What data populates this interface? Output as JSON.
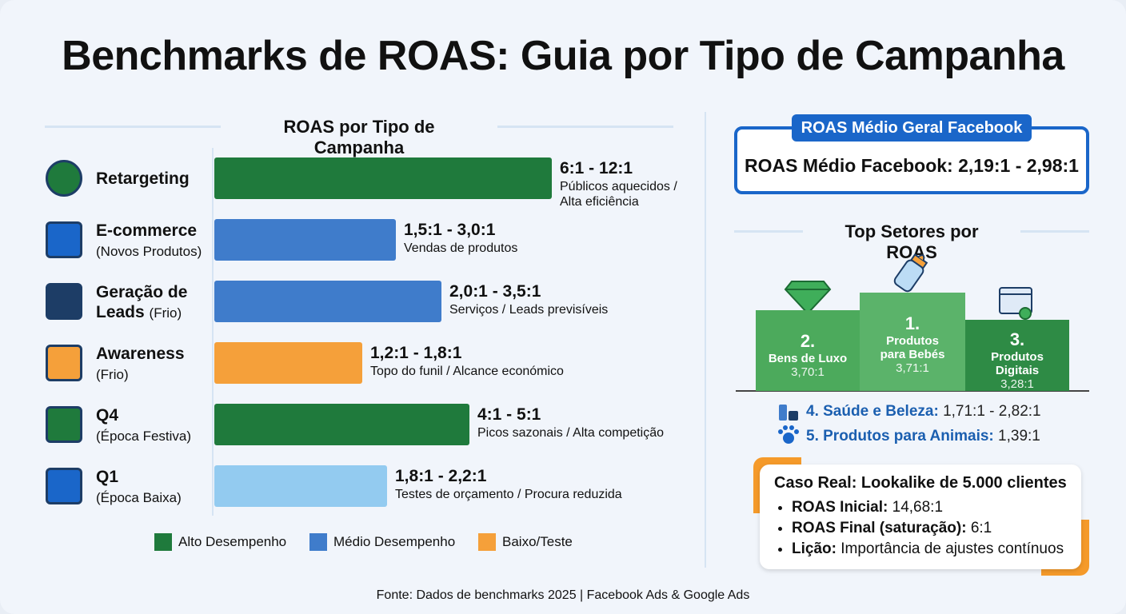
{
  "header": {
    "title": "Benchmarks de ROAS: Guia por Tipo de Campanha"
  },
  "left": {
    "heading": "ROAS por Tipo de Campanha",
    "rows": [
      {
        "name": "Retargeting",
        "range": "6:1 - 12:1",
        "note": "Públicos aquecidos / Alta eficiência"
      },
      {
        "name": "E-commerce",
        "sub": "(Novos Produtos)",
        "range": "1,5:1 - 3,0:1",
        "note": "Vendas de produtos"
      },
      {
        "name": "Geração de",
        "name2": "Leads",
        "sub": "(Frio)",
        "range": "2,0:1 - 3,5:1",
        "note": "Serviços / Leads previsíveis"
      },
      {
        "name": "Awareness",
        "sub": "(Frio)",
        "range": "1,2:1 - 1,8:1",
        "note": "Topo do funil / Alcance económico"
      },
      {
        "name": "Q4",
        "sub": "(Época Festiva)",
        "range": "4:1 - 5:1",
        "note": "Picos sazonais / Alta competição"
      },
      {
        "name": "Q1",
        "sub": "(Época Baixa)",
        "range": "1,8:1 - 2,2:1",
        "note": "Testes de orçamento / Procura reduzida"
      }
    ],
    "legend": [
      "Alto Desempenho",
      "Médio Desempenho",
      "Baixo/Teste"
    ]
  },
  "right": {
    "box_label": "ROAS Médio Geral Facebook",
    "box_text": "ROAS Médio Facebook: 2,19:1 - 2,98:1",
    "heading": "Top Setores por ROAS",
    "podium": [
      {
        "rank": "2.",
        "name": "Bens de Luxo",
        "value": "3,70:1"
      },
      {
        "rank": "1.",
        "name": "Produtos para Bebés",
        "value": "3,71:1"
      },
      {
        "rank": "3.",
        "name": "Produtos Digitais",
        "value": "3,28:1"
      }
    ],
    "list": [
      {
        "label": "4. Saúde e Beleza:",
        "value": "1,71:1 - 2,82:1"
      },
      {
        "label": "5. Produtos para Animais:",
        "value": "1,39:1"
      }
    ],
    "case": {
      "title": "Caso Real: Lookalike de 5.000 clientes",
      "items": [
        {
          "label": "ROAS Inicial:",
          "value": "14,68:1"
        },
        {
          "label": "ROAS Final (saturação):",
          "value": "6:1"
        },
        {
          "label": "Lição:",
          "value": "Importância de ajustes contínuos"
        }
      ]
    }
  },
  "footer": "Fonte: Dados de benchmarks 2025 | Facebook Ads & Google Ads"
}
